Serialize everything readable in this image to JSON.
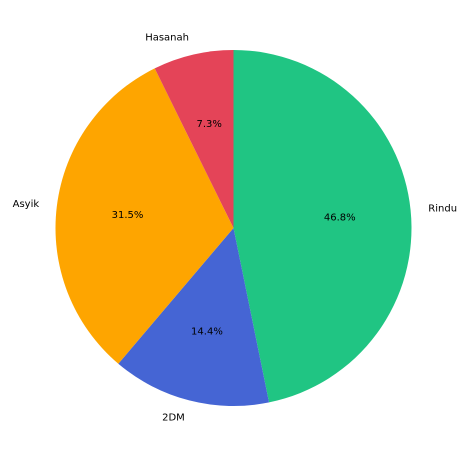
{
  "chart_data": {
    "type": "pie",
    "title": "",
    "categories": [
      "Rindu",
      "2DM",
      "Asyik",
      "Hasanah"
    ],
    "values": [
      46.8,
      14.4,
      31.5,
      7.3
    ],
    "percent_labels": [
      "46.8%",
      "14.4%",
      "31.5%",
      "7.3%"
    ],
    "colors": [
      "#20c583",
      "#4565d4",
      "#fea500",
      "#e44458"
    ],
    "start_angle_deg": 90,
    "direction": "clockwise",
    "legend": "none"
  }
}
